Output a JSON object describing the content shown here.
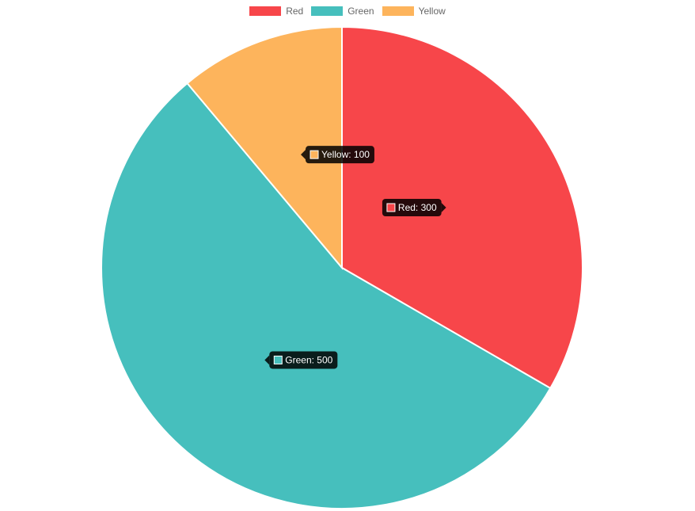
{
  "chart_data": {
    "type": "pie",
    "categories": [
      "Red",
      "Green",
      "Yellow"
    ],
    "values": [
      300,
      500,
      100
    ],
    "colors": [
      "#F7464A",
      "#46BFBD",
      "#FDB45C"
    ],
    "legend_position": "top",
    "tooltips": [
      {
        "label": "Red: 300",
        "index": 0
      },
      {
        "label": "Green: 500",
        "index": 1
      },
      {
        "label": "Yellow: 100",
        "index": 2
      }
    ]
  },
  "legend": {
    "items": [
      {
        "label": "Red",
        "color": "#F7464A"
      },
      {
        "label": "Green",
        "color": "#46BFBD"
      },
      {
        "label": "Yellow",
        "color": "#FDB45C"
      }
    ]
  }
}
